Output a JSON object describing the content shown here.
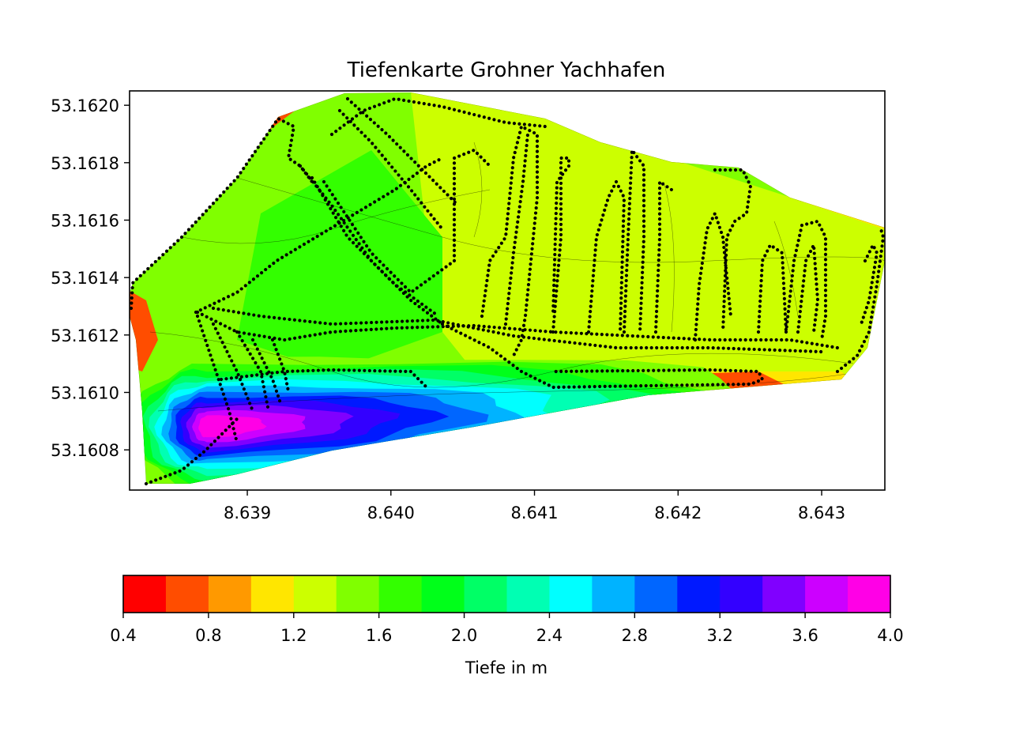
{
  "chart_data": {
    "type": "heatmap",
    "subtype": "filled-contour map with survey track points",
    "title": "Tiefenkarte Grohner Yachhafen",
    "xlabel": "",
    "ylabel": "",
    "xlim": [
      8.63818,
      8.64344
    ],
    "ylim": [
      53.16066,
      53.16205
    ],
    "x_ticks": [
      "8.639",
      "8.640",
      "8.641",
      "8.642",
      "8.643"
    ],
    "x_tick_values": [
      8.639,
      8.64,
      8.641,
      8.642,
      8.643
    ],
    "y_ticks": [
      "53.1608",
      "53.1610",
      "53.1612",
      "53.1614",
      "53.1616",
      "53.1618",
      "53.1620"
    ],
    "y_tick_values": [
      53.1608,
      53.161,
      53.1612,
      53.1614,
      53.1616,
      53.1618,
      53.162
    ],
    "grid": false,
    "legend": "none",
    "colorbar": {
      "orientation": "horizontal",
      "placement": "below",
      "label": "Tiefe in m",
      "range": [
        0.4,
        4.0
      ],
      "tick_labels": [
        "0.4",
        "0.8",
        "1.2",
        "1.6",
        "2.0",
        "2.4",
        "2.8",
        "3.2",
        "3.6",
        "4.0"
      ],
      "levels": [
        0.4,
        0.6,
        0.8,
        1.0,
        1.2,
        1.4,
        1.6,
        1.8,
        2.0,
        2.2,
        2.4,
        2.6,
        2.8,
        3.0,
        3.2,
        3.4,
        3.6,
        3.8,
        4.0
      ],
      "colors": [
        "#ff0000",
        "#ff4d00",
        "#ff9900",
        "#ffe600",
        "#ccff00",
        "#80ff00",
        "#33ff00",
        "#00ff1a",
        "#00ff66",
        "#00ffb3",
        "#00ffff",
        "#00b3ff",
        "#0066ff",
        "#0019ff",
        "#3300ff",
        "#8000ff",
        "#cc00ff",
        "#ff00e6"
      ]
    },
    "depth_regions_m": [
      {
        "area": "outer rim (north and east edge)",
        "depth": 0.9
      },
      {
        "area": "east basin",
        "depth": 1.3
      },
      {
        "area": "central basin",
        "depth": 1.5
      },
      {
        "area": "west entrance channel",
        "depth": 1.8
      },
      {
        "area": "south-west entrance",
        "depth": 2.8
      },
      {
        "area": "deepest point south-west",
        "depth": 3.8
      }
    ],
    "track_points": "black survey track points drawn over the depth field"
  }
}
